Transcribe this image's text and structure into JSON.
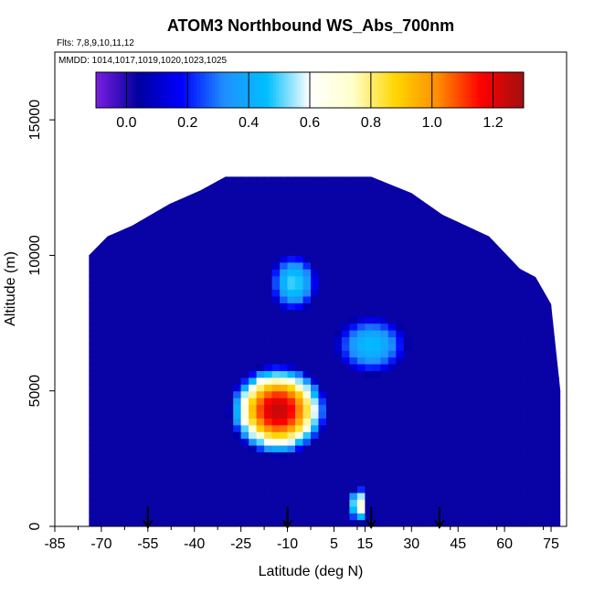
{
  "chart_data": {
    "type": "heatmap",
    "title": "ATOM3 Northbound WS_Abs_700nm",
    "flights_label": "Flts: 7,8,9,10,11,12",
    "mmdd_label": "MMDD: 1014,1017,1019,1020,1023,1025",
    "xlabel": "Latitude (deg N)",
    "ylabel": "Altitude (m)",
    "xlim": [
      -85,
      80
    ],
    "ylim": [
      0,
      17500
    ],
    "x_ticks": [
      -85,
      -70,
      -55,
      -40,
      -25,
      -10,
      5,
      15,
      30,
      45,
      60,
      75
    ],
    "y_ticks": [
      0,
      5000,
      10000,
      15000
    ],
    "colorbar": {
      "range": [
        -0.1,
        1.3
      ],
      "ticks": [
        0.0,
        0.2,
        0.4,
        0.6,
        0.8,
        1.0,
        1.2
      ],
      "colors": [
        "#7a1fe0",
        "#0000a0",
        "#0000ff",
        "#1e90ff",
        "#00bfff",
        "#ffffff",
        "#ffffcc",
        "#ffd700",
        "#ff8c00",
        "#ff0000",
        "#a01010"
      ]
    },
    "background_value": 0.03,
    "envelope": [
      {
        "lat": -74,
        "top": 10000
      },
      {
        "lat": -68,
        "top": 10700
      },
      {
        "lat": -60,
        "top": 11100
      },
      {
        "lat": -48,
        "top": 11900
      },
      {
        "lat": -38,
        "top": 12400
      },
      {
        "lat": -30,
        "top": 12900
      },
      {
        "lat": 0,
        "top": 12900
      },
      {
        "lat": 17,
        "top": 12900
      },
      {
        "lat": 30,
        "top": 12300
      },
      {
        "lat": 40,
        "top": 11500
      },
      {
        "lat": 55,
        "top": 10700
      },
      {
        "lat": 65,
        "top": 9500
      },
      {
        "lat": 70,
        "top": 9200
      },
      {
        "lat": 75,
        "top": 8200
      },
      {
        "lat": 78,
        "top": 5000
      }
    ],
    "features": [
      {
        "name": "mid-troposphere plume",
        "lat_center": -13,
        "lat_half_width": 16,
        "alt_center": 4300,
        "alt_half_height": 1700,
        "peak": 1.25
      },
      {
        "name": "upper wedge",
        "lat_center": -8,
        "lat_half_width": 8,
        "alt_center": 9000,
        "alt_half_height": 1100,
        "peak": 0.5
      },
      {
        "name": "northern wedge",
        "lat_center": 17,
        "lat_half_width": 12,
        "alt_center": 6700,
        "alt_half_height": 1100,
        "peak": 0.45
      },
      {
        "name": "boundary layer",
        "lat_center": 13,
        "lat_half_width": 3,
        "alt_center": 800,
        "alt_half_height": 700,
        "peak": 0.75
      }
    ],
    "profile_markers_lat": [
      -55,
      -10,
      17,
      39
    ],
    "grid": false
  }
}
